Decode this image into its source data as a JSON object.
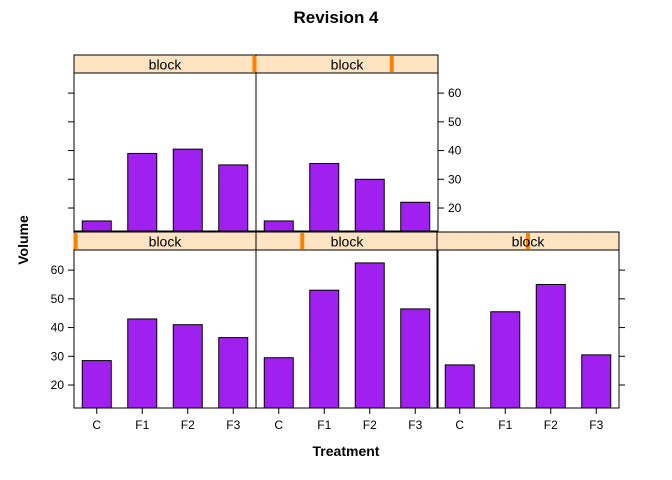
{
  "chart_data": {
    "type": "bar",
    "title": "Revision 4",
    "xlabel": "Treatment",
    "ylabel": "Volume",
    "categories": [
      "C",
      "F1",
      "F2",
      "F3"
    ],
    "ylim": [
      12,
      67
    ],
    "yticks": [
      20,
      30,
      40,
      50,
      60
    ],
    "bar_color": "#a020f0",
    "strip_bg": "#ffe4c4",
    "strip_marker_color": "#ff7f00",
    "panels": [
      {
        "strip": "block",
        "level": 0.75,
        "values": [
          15.5,
          35.5,
          30.0,
          22.0
        ]
      },
      {
        "strip": "block",
        "level": 1.0,
        "values": [
          15.5,
          39.0,
          40.5,
          35.0
        ]
      },
      {
        "strip": "block",
        "level": 0.0,
        "values": [
          28.5,
          43.0,
          41.0,
          36.5
        ]
      },
      {
        "strip": "block",
        "level": 0.25,
        "values": [
          29.5,
          53.0,
          62.5,
          46.5
        ]
      },
      {
        "strip": "block",
        "level": 0.5,
        "values": [
          27.0,
          45.5,
          55.0,
          30.5
        ]
      }
    ]
  }
}
